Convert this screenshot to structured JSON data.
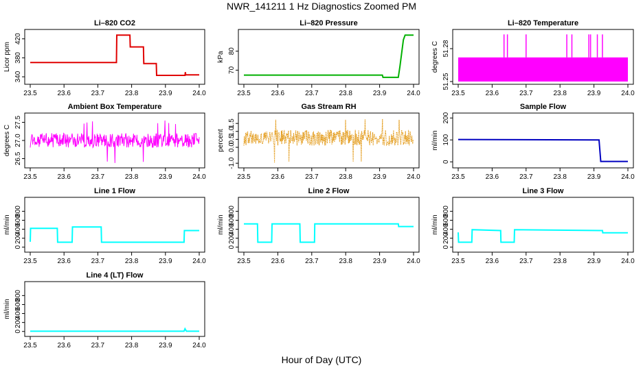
{
  "page": {
    "title": "NWR_141211  1 Hz Diagnostics Zoomed PM",
    "xlabel": "Hour of Day (UTC)"
  },
  "chart_data": [
    {
      "type": "line",
      "title": "Li–820 CO2",
      "ylabel": "Licor ppm",
      "color": "#e00000",
      "xlim": [
        23.5,
        24.0
      ],
      "ylim": [
        330,
        434
      ],
      "xticks": [
        "23.5",
        "23.6",
        "23.7",
        "23.8",
        "23.9",
        "24.0"
      ],
      "yticks": [
        "340",
        "380",
        "420"
      ],
      "series": [
        {
          "name": "",
          "x": [
            23.5,
            23.755,
            23.756,
            23.795,
            23.796,
            23.835,
            23.836,
            23.873,
            23.874,
            23.958,
            23.959,
            23.96,
            23.961,
            24.0
          ],
          "y": [
            370,
            370,
            428,
            428,
            403,
            403,
            368,
            368,
            343,
            343,
            350,
            344,
            344,
            344
          ]
        }
      ]
    },
    {
      "type": "line",
      "title": "Li–820 Pressure",
      "ylabel": "kPa",
      "color": "#00b000",
      "xlim": [
        23.5,
        24.0
      ],
      "ylim": [
        64,
        90
      ],
      "xticks": [
        "23.5",
        "23.6",
        "23.7",
        "23.8",
        "23.9",
        "24.0"
      ],
      "yticks": [
        "70",
        "80"
      ],
      "series": [
        {
          "name": "",
          "x": [
            23.5,
            23.908,
            23.91,
            23.955,
            23.96,
            23.97,
            23.975,
            24.0
          ],
          "y": [
            67.4,
            67.4,
            66.2,
            66.2,
            72,
            86,
            88.5,
            88.5
          ]
        }
      ]
    },
    {
      "type": "line",
      "title": "Li–820 Temperature",
      "ylabel": "degrees C",
      "color": "#ff00ff",
      "xlim": [
        23.5,
        24.0
      ],
      "ylim": [
        51.25,
        51.295
      ],
      "xticks": [
        "23.5",
        "23.6",
        "23.7",
        "23.8",
        "23.9",
        "24.0"
      ],
      "yticks": [
        "51.25",
        "51.28"
      ],
      "band": [
        51.25,
        51.272
      ],
      "spikes": [
        23.635,
        23.645,
        23.7,
        23.82,
        23.835,
        23.885,
        23.89,
        23.91,
        23.925
      ],
      "spike_top": 51.293
    },
    {
      "type": "line",
      "title": "Ambient Box Temperature",
      "ylabel": "degrees C",
      "color": "#ff00ff",
      "xlim": [
        23.5,
        24.0
      ],
      "ylim": [
        26.32,
        27.68
      ],
      "xticks": [
        "23.5",
        "23.6",
        "23.7",
        "23.8",
        "23.9",
        "24.0"
      ],
      "yticks": [
        "26.5",
        "27.0",
        "27.5"
      ],
      "noise": {
        "center": 27.0,
        "amplitude": 0.2,
        "spike_min": 26.35,
        "spike_max": 27.55
      }
    },
    {
      "type": "scatter",
      "title": "Gas Stream RH",
      "ylabel": "percent",
      "color": "#e09000",
      "xlim": [
        23.5,
        24.0
      ],
      "ylim": [
        -1.12,
        1.98
      ],
      "xticks": [
        "23.5",
        "23.6",
        "23.7",
        "23.8",
        "23.9",
        "24.0"
      ],
      "yticks": [
        "-1.0",
        "0.0",
        "0.5",
        "1.0",
        "1.5"
      ],
      "noise": {
        "center": 0.6,
        "amplitude": 0.5,
        "spike_min": -1.0,
        "spike_max": 1.8
      }
    },
    {
      "type": "line",
      "title": "Sample Flow",
      "ylabel": "ml/min",
      "color": "#0000c0",
      "xlim": [
        23.5,
        24.0
      ],
      "ylim": [
        -15,
        210
      ],
      "xticks": [
        "23.5",
        "23.6",
        "23.7",
        "23.8",
        "23.9",
        "24.0"
      ],
      "yticks": [
        "0",
        "100",
        "200"
      ],
      "series": [
        {
          "name": "",
          "x": [
            23.5,
            23.915,
            23.92,
            24.0
          ],
          "y": [
            102,
            100,
            2,
            2
          ]
        }
      ]
    },
    {
      "type": "line",
      "title": "Line 1 Flow",
      "ylabel": "ml/min",
      "color": "#00ffff",
      "xlim": [
        23.5,
        24.0
      ],
      "ylim": [
        -50,
        1050
      ],
      "xticks": [
        "23.5",
        "23.6",
        "23.7",
        "23.8",
        "23.9",
        "24.0"
      ],
      "yticks": [
        "0",
        "200",
        "400",
        "600",
        "800"
      ],
      "series": [
        {
          "name": "",
          "x": [
            23.5,
            23.501,
            23.58,
            23.581,
            23.624,
            23.625,
            23.71,
            23.711,
            23.955,
            23.956,
            24.0
          ],
          "y": [
            120,
            420,
            420,
            110,
            110,
            450,
            450,
            110,
            110,
            370,
            370
          ]
        }
      ]
    },
    {
      "type": "line",
      "title": "Line 2 Flow",
      "ylabel": "ml/min",
      "color": "#00ffff",
      "xlim": [
        23.5,
        24.0
      ],
      "ylim": [
        -50,
        1050
      ],
      "xticks": [
        "23.5",
        "23.6",
        "23.7",
        "23.8",
        "23.9",
        "24.0"
      ],
      "yticks": [
        "0",
        "200",
        "400",
        "600",
        "800"
      ],
      "series": [
        {
          "name": "",
          "x": [
            23.5,
            23.54,
            23.541,
            23.582,
            23.583,
            23.665,
            23.666,
            23.708,
            23.709,
            23.955,
            23.956,
            24.0
          ],
          "y": [
            520,
            520,
            110,
            110,
            520,
            520,
            110,
            110,
            520,
            520,
            460,
            460
          ]
        }
      ]
    },
    {
      "type": "line",
      "title": "Line 3 Flow",
      "ylabel": "ml/min",
      "color": "#00ffff",
      "xlim": [
        23.5,
        24.0
      ],
      "ylim": [
        -50,
        1050
      ],
      "xticks": [
        "23.5",
        "23.6",
        "23.7",
        "23.8",
        "23.9",
        "24.0"
      ],
      "yticks": [
        "0",
        "200",
        "400",
        "600",
        "800"
      ],
      "series": [
        {
          "name": "",
          "x": [
            23.5,
            23.501,
            23.54,
            23.541,
            23.625,
            23.626,
            23.665,
            23.666,
            23.925,
            23.926,
            24.0
          ],
          "y": [
            330,
            110,
            110,
            390,
            370,
            110,
            110,
            390,
            370,
            320,
            320
          ]
        }
      ]
    },
    {
      "type": "line",
      "title": "Line 4 (LT) Flow",
      "ylabel": "ml/min",
      "color": "#00ffff",
      "xlim": [
        23.5,
        24.0
      ],
      "ylim": [
        -50,
        1050
      ],
      "xticks": [
        "23.5",
        "23.6",
        "23.7",
        "23.8",
        "23.9",
        "24.0"
      ],
      "yticks": [
        "0",
        "200",
        "400",
        "600",
        "800"
      ],
      "series": [
        {
          "name": "",
          "x": [
            23.5,
            23.955,
            23.958,
            23.962,
            24.0
          ],
          "y": [
            5,
            5,
            60,
            5,
            5
          ]
        }
      ]
    }
  ]
}
